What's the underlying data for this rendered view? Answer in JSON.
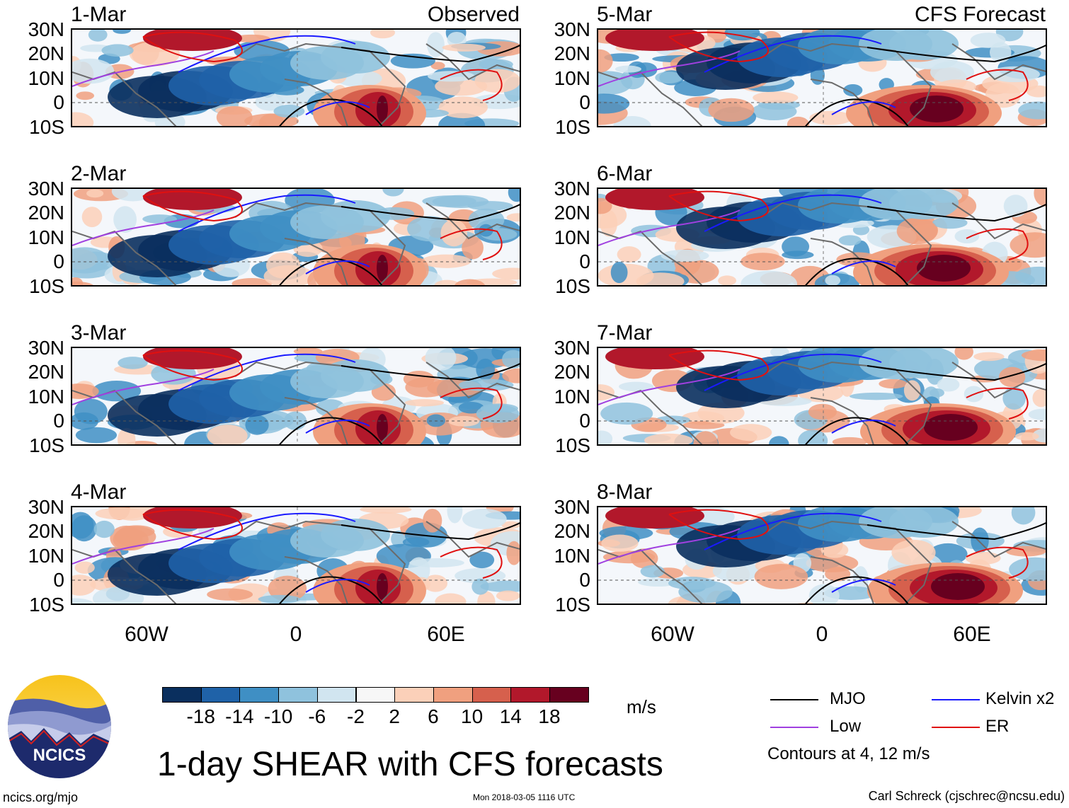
{
  "panels": [
    {
      "date": "1-Mar",
      "tag": "Observed",
      "column": "left",
      "row": 0
    },
    {
      "date": "2-Mar",
      "tag": "",
      "column": "left",
      "row": 1
    },
    {
      "date": "3-Mar",
      "tag": "",
      "column": "left",
      "row": 2
    },
    {
      "date": "4-Mar",
      "tag": "",
      "column": "left",
      "row": 3
    },
    {
      "date": "5-Mar",
      "tag": "CFS Forecast",
      "column": "right",
      "row": 0
    },
    {
      "date": "6-Mar",
      "tag": "",
      "column": "right",
      "row": 1
    },
    {
      "date": "7-Mar",
      "tag": "",
      "column": "right",
      "row": 2
    },
    {
      "date": "8-Mar",
      "tag": "",
      "column": "right",
      "row": 3
    }
  ],
  "lat_labels": [
    "30N",
    "20N",
    "10N",
    "0",
    "10S"
  ],
  "lon_labels": [
    "60W",
    "0",
    "60E"
  ],
  "colorbar": {
    "ticks": [
      "-18",
      "-14",
      "-10",
      "-6",
      "-2",
      "2",
      "6",
      "10",
      "14",
      "18"
    ],
    "colors": [
      "#0a2f5e",
      "#1f62a8",
      "#3f8fc4",
      "#8fc2dd",
      "#d1e5f0",
      "#f7f7f7",
      "#fbd0b9",
      "#f0a07f",
      "#d6604d",
      "#b2182b",
      "#67001f"
    ],
    "units": "m/s"
  },
  "legend": {
    "items": [
      {
        "label": "MJO",
        "color": "#000000"
      },
      {
        "label": "Kelvin x2",
        "color": "#1a1aff"
      },
      {
        "label": "Low",
        "color": "#a040e0"
      },
      {
        "label": "ER",
        "color": "#e01010"
      }
    ],
    "note": "Contours at 4, 12 m/s"
  },
  "title": "1-day SHEAR with CFS forecasts",
  "logo": {
    "text": "NCICS"
  },
  "footer": {
    "site": "ncics.org/mjo",
    "timestamp": "Mon 2018-03-05 1116 UTC",
    "author": "Carl Schreck (cjschrec@ncsu.edu)"
  }
}
